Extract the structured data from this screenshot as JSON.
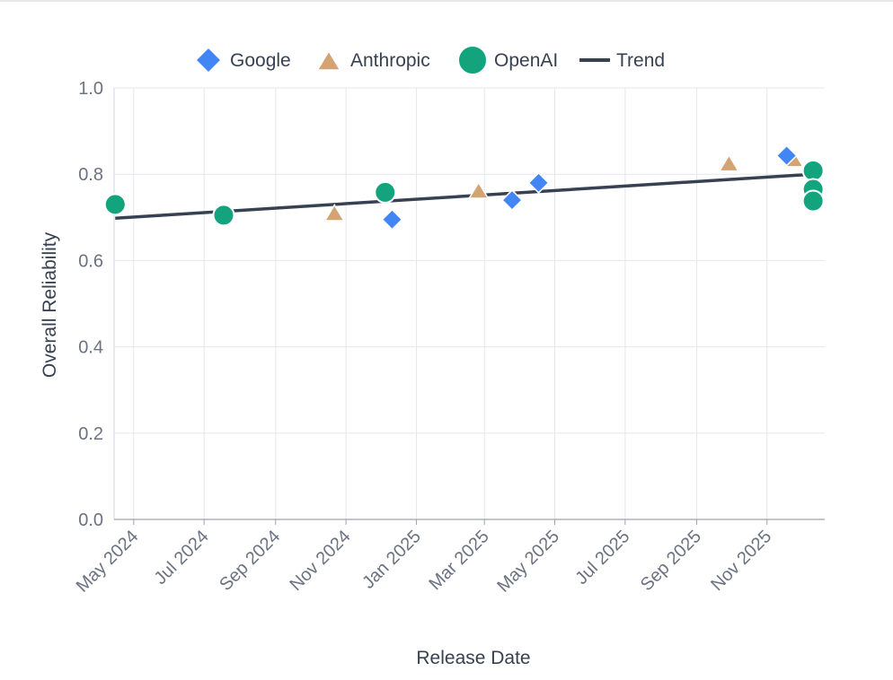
{
  "chart_data": {
    "type": "scatter",
    "xlabel": "Release Date",
    "ylabel": "Overall Reliability",
    "ylim": [
      0.0,
      1.0
    ],
    "xlim": [
      "2024-04-14",
      "2025-12-21"
    ],
    "y_ticks": [
      "0.0",
      "0.2",
      "0.4",
      "0.6",
      "0.8",
      "1.0"
    ],
    "x_ticks": [
      {
        "date": "2024-05-01",
        "label": "May 2024"
      },
      {
        "date": "2024-07-01",
        "label": "Jul 2024"
      },
      {
        "date": "2024-09-01",
        "label": "Sep 2024"
      },
      {
        "date": "2024-11-01",
        "label": "Nov 2024"
      },
      {
        "date": "2025-01-01",
        "label": "Jan 2025"
      },
      {
        "date": "2025-03-01",
        "label": "Mar 2025"
      },
      {
        "date": "2025-05-01",
        "label": "May 2025"
      },
      {
        "date": "2025-07-01",
        "label": "Jul 2025"
      },
      {
        "date": "2025-09-01",
        "label": "Sep 2025"
      },
      {
        "date": "2025-11-01",
        "label": "Nov 2025"
      }
    ],
    "grid": true,
    "legend_position": "top-center",
    "series": [
      {
        "name": "Google",
        "marker": "diamond",
        "color": "#4285f4",
        "points": [
          {
            "x": "2024-12-11",
            "y": 0.695
          },
          {
            "x": "2025-03-25",
            "y": 0.74
          },
          {
            "x": "2025-04-17",
            "y": 0.78
          },
          {
            "x": "2025-11-18",
            "y": 0.843
          }
        ]
      },
      {
        "name": "Anthropic",
        "marker": "triangle",
        "color": "#d4a373",
        "points": [
          {
            "x": "2024-10-22",
            "y": 0.708
          },
          {
            "x": "2025-02-24",
            "y": 0.76
          },
          {
            "x": "2025-09-29",
            "y": 0.823
          },
          {
            "x": "2025-11-24",
            "y": 0.833
          }
        ]
      },
      {
        "name": "OpenAI",
        "marker": "circle",
        "color": "#13a37d",
        "points": [
          {
            "x": "2024-04-15",
            "y": 0.73
          },
          {
            "x": "2024-07-18",
            "y": 0.705
          },
          {
            "x": "2024-12-05",
            "y": 0.758
          },
          {
            "x": "2025-12-11",
            "y": 0.808
          },
          {
            "x": "2025-12-11",
            "y": 0.765
          },
          {
            "x": "2025-12-11",
            "y": 0.738
          }
        ]
      },
      {
        "name": "Trend",
        "type": "line",
        "color": "#374151",
        "points": [
          {
            "x": "2024-04-15",
            "y": 0.698
          },
          {
            "x": "2025-12-11",
            "y": 0.8
          }
        ]
      }
    ]
  }
}
